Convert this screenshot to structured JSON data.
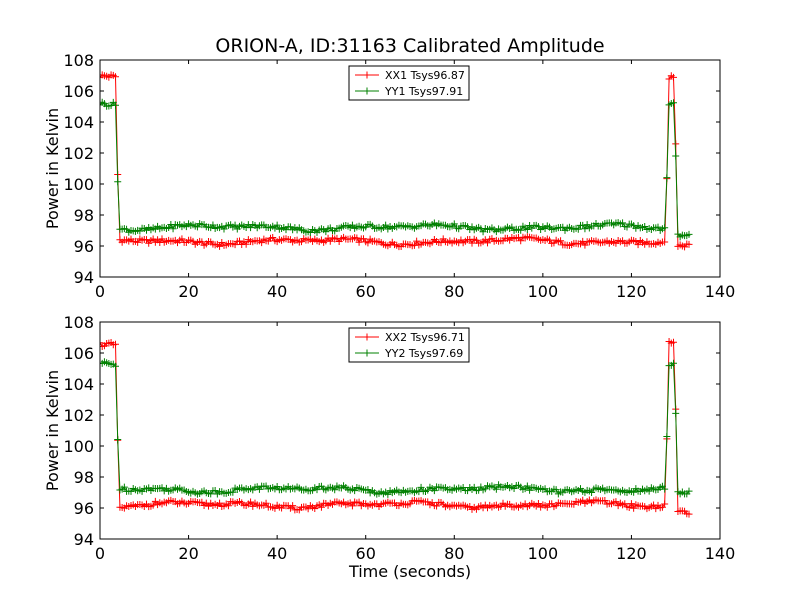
{
  "chart_data": [
    {
      "type": "line",
      "title": "ORION-A, ID:31163 Calibrated Amplitude",
      "xlabel": "",
      "ylabel": "Power in Kelvin",
      "xlim": [
        0,
        140
      ],
      "ylim": [
        94,
        108
      ],
      "xticks": [
        0,
        20,
        40,
        60,
        80,
        100,
        120,
        140
      ],
      "yticks": [
        94,
        96,
        98,
        100,
        102,
        104,
        106,
        108
      ],
      "grid": false,
      "legend_position": "top-center",
      "series": [
        {
          "name": "XX1 Tsys96.87",
          "color": "#ff0000",
          "marker": "plus",
          "profile": {
            "x_start": 0,
            "x_end": 133,
            "step": 0.5,
            "on_level": 106.8,
            "off_level": 96.3,
            "off_start": 4.2,
            "off_end": 129.8
          }
        },
        {
          "name": "YY1 Tsys97.91",
          "color": "#008000",
          "marker": "plus",
          "profile": {
            "x_start": 0,
            "x_end": 133,
            "step": 0.5,
            "on_level": 105.2,
            "off_level": 97.2,
            "off_start": 4.2,
            "off_end": 129.8
          }
        }
      ]
    },
    {
      "type": "line",
      "title": "",
      "xlabel": "Time (seconds)",
      "ylabel": "Power in Kelvin",
      "xlim": [
        0,
        140
      ],
      "ylim": [
        94,
        108
      ],
      "xticks": [
        0,
        20,
        40,
        60,
        80,
        100,
        120,
        140
      ],
      "yticks": [
        94,
        96,
        98,
        100,
        102,
        104,
        106,
        108
      ],
      "grid": false,
      "legend_position": "top-center",
      "series": [
        {
          "name": "XX2 Tsys96.71",
          "color": "#ff0000",
          "marker": "plus",
          "profile": {
            "x_start": 0,
            "x_end": 133,
            "step": 0.5,
            "on_level": 106.7,
            "off_level": 96.2,
            "off_start": 4.2,
            "off_end": 129.8
          }
        },
        {
          "name": "YY2 Tsys97.69",
          "color": "#008000",
          "marker": "plus",
          "profile": {
            "x_start": 0,
            "x_end": 133,
            "step": 0.5,
            "on_level": 105.2,
            "off_level": 97.2,
            "off_start": 4.2,
            "off_end": 129.8
          }
        }
      ]
    }
  ]
}
